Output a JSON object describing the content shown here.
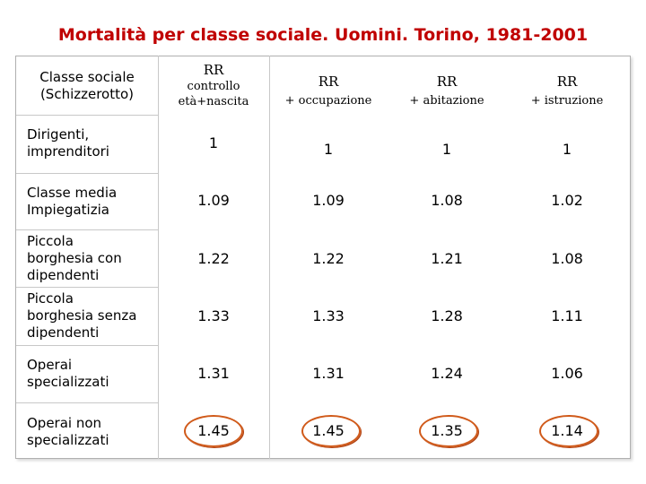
{
  "title": "Mortalità per classe sociale. Uomini. Torino, 1981-2001",
  "header": {
    "col0": [
      "Classe sociale",
      "(Schizzerotto)"
    ],
    "col1": [
      "RR",
      "controllo",
      "età+nascita"
    ],
    "col2": [
      "RR",
      "+ occupazione"
    ],
    "col3": [
      "RR",
      "+ abitazione"
    ],
    "col4": [
      "RR",
      "+ istruzione"
    ]
  },
  "rows": [
    {
      "label": [
        "Dirigenti,",
        "imprenditori"
      ],
      "values": [
        "1",
        "1",
        "1",
        "1"
      ]
    },
    {
      "label": [
        "Classe media",
        "Impiegatizia"
      ],
      "values": [
        "1.09",
        "1.09",
        "1.08",
        "1.02"
      ]
    },
    {
      "label": [
        "Piccola",
        "borghesia con",
        "dipendenti"
      ],
      "values": [
        "1.22",
        "1.22",
        "1.21",
        "1.08"
      ]
    },
    {
      "label": [
        "Piccola",
        "borghesia senza",
        "dipendenti"
      ],
      "values": [
        "1.33",
        "1.33",
        "1.28",
        "1.11"
      ]
    },
    {
      "label": [
        "Operai",
        "specializzati"
      ],
      "values": [
        "1.31",
        "1.31",
        "1.24",
        "1.06"
      ]
    },
    {
      "label": [
        "Operai non",
        "specializzati"
      ],
      "values": [
        "1.45",
        "1.45",
        "1.35",
        "1.14"
      ]
    }
  ],
  "highlight_color": "#d05a1a",
  "title_color": "#c00000"
}
